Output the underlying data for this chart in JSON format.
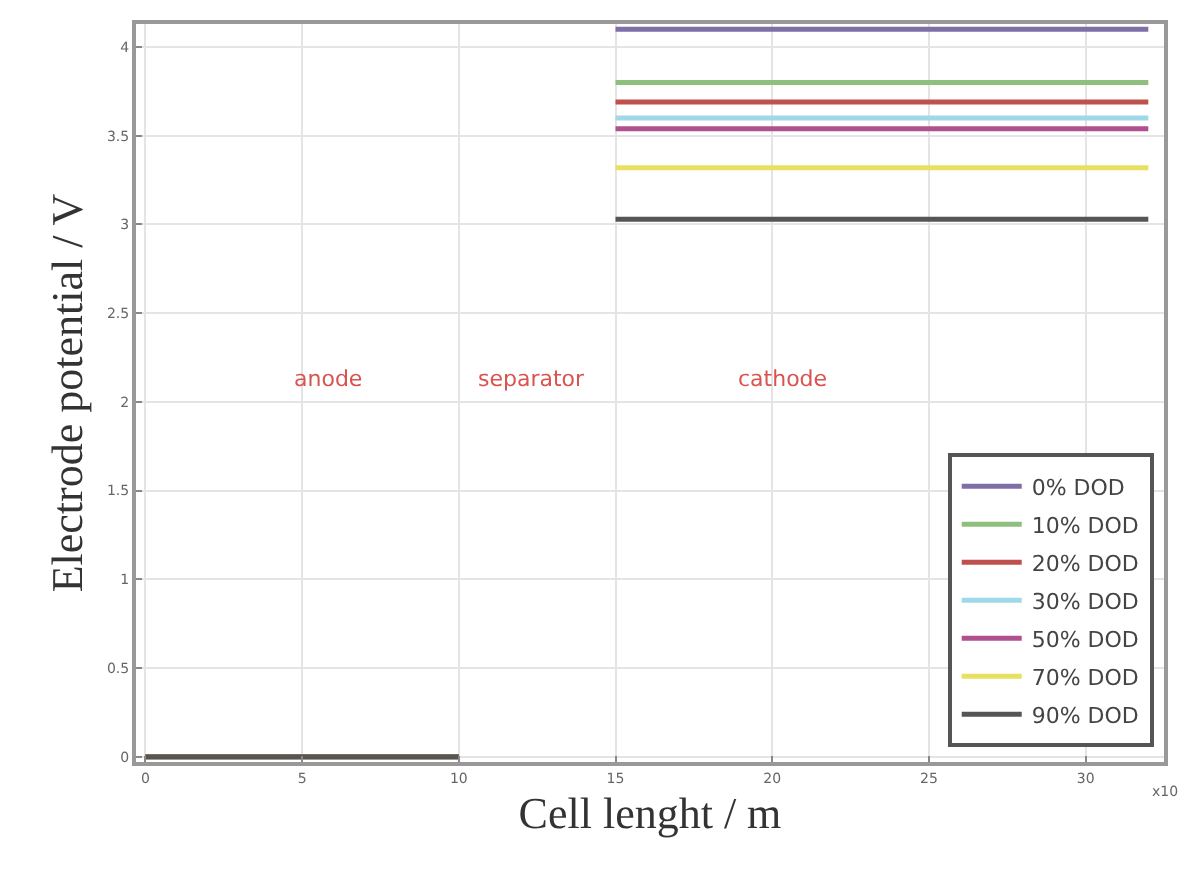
{
  "chart_data": {
    "type": "line",
    "xlabel": "Cell lenght / m",
    "ylabel": "Electrode potential / V",
    "x": [
      0,
      10,
      12.5,
      15,
      32
    ],
    "series": [
      {
        "name": "0% DOD",
        "color": "#7e6fa8",
        "values": [
          0,
          0,
          null,
          4.1,
          4.1
        ]
      },
      {
        "name": "10% DOD",
        "color": "#8fbf7f",
        "values": [
          0,
          0,
          null,
          3.8,
          3.8
        ]
      },
      {
        "name": "20% DOD",
        "color": "#c0504d",
        "values": [
          0,
          0,
          null,
          3.69,
          3.69
        ]
      },
      {
        "name": "30% DOD",
        "color": "#9fd8e8",
        "values": [
          0,
          0,
          null,
          3.6,
          3.6
        ]
      },
      {
        "name": "50% DOD",
        "color": "#b0508f",
        "values": [
          0,
          0,
          null,
          3.54,
          3.54
        ]
      },
      {
        "name": "70% DOD",
        "color": "#e8e060",
        "values": [
          0,
          0,
          null,
          3.32,
          3.32
        ]
      },
      {
        "name": "90% DOD",
        "color": "#555555",
        "values": [
          0,
          0,
          null,
          3.03,
          3.03
        ]
      }
    ],
    "xlim": [
      -0.3,
      32.5
    ],
    "xticks": [
      0,
      5,
      10,
      15,
      20,
      25,
      30
    ],
    "ylim": [
      -0.03,
      4.13
    ],
    "yticks": [
      0,
      0.5,
      1,
      1.5,
      2,
      2.5,
      3,
      3.5,
      4
    ],
    "annotations": [
      "anode",
      "separator",
      "cathode",
      "x10"
    ],
    "grid": true,
    "legend": "bottom right",
    "marker": "none",
    "line_style": "solid"
  }
}
